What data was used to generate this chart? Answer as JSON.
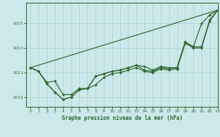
{
  "background_color": "#cce8ea",
  "grid_color": "#aacccc",
  "line_color": "#2d6a2d",
  "title": "Graphe pression niveau de la mer (hPa)",
  "xlim": [
    -0.5,
    23
  ],
  "ylim": [
    1011.6,
    1015.85
  ],
  "yticks": [
    1012,
    1013,
    1014,
    1015
  ],
  "xticks": [
    0,
    1,
    2,
    3,
    4,
    5,
    6,
    7,
    8,
    9,
    10,
    11,
    12,
    13,
    14,
    15,
    16,
    17,
    18,
    19,
    20,
    21,
    22,
    23
  ],
  "line1_x": [
    0,
    23
  ],
  "line1_y": [
    1013.2,
    1015.55
  ],
  "line2": [
    1013.2,
    1013.05,
    1012.6,
    1012.65,
    1012.1,
    1012.1,
    1012.35,
    1012.35,
    1012.85,
    1012.95,
    1013.05,
    1013.1,
    1013.2,
    1013.3,
    1013.25,
    1013.1,
    1013.25,
    1013.2,
    1013.2,
    1014.25,
    1014.05,
    1015.0,
    1015.35,
    1015.55
  ],
  "line3": [
    1013.2,
    1013.05,
    1012.55,
    1012.2,
    1011.9,
    1012.0,
    1012.3,
    1012.35,
    1012.85,
    1012.95,
    1013.05,
    1013.1,
    1013.2,
    1013.3,
    1013.1,
    1013.05,
    1013.2,
    1013.15,
    1013.2,
    1014.25,
    1014.05,
    1014.05,
    1015.15,
    1015.55
  ],
  "line4": [
    1013.2,
    1013.05,
    1012.55,
    1012.2,
    1011.9,
    1012.0,
    1012.3,
    1012.35,
    1012.5,
    1012.8,
    1012.95,
    1013.0,
    1013.1,
    1013.2,
    1013.05,
    1013.0,
    1013.15,
    1013.1,
    1013.15,
    1014.2,
    1014.0,
    1014.0,
    1015.1,
    1015.55
  ]
}
